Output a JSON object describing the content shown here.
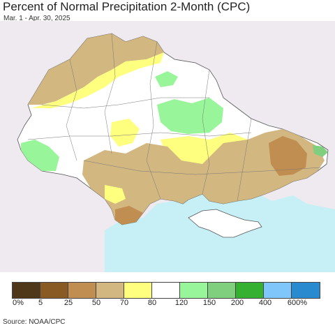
{
  "header": {
    "title": "Percent of Normal Precipitation 2-Month (CPC)",
    "date_range": "Mar. 1 - Apr. 30, 2025"
  },
  "legend": {
    "colors": [
      "#4e3819",
      "#8a5a24",
      "#c08e50",
      "#d2b781",
      "#ffff7f",
      "#ffffff",
      "#99f599",
      "#7fcf7f",
      "#36b030",
      "#7fc6fa",
      "#2a8ad0"
    ],
    "labels": [
      "0%",
      "5",
      "25",
      "50",
      "70",
      "80",
      "120",
      "150",
      "200",
      "400",
      "600%"
    ]
  },
  "footer": {
    "source": "Source: NOAA/CPC"
  },
  "map_colors": {
    "sea": "#c6f0f5",
    "outside": "#eeeaf0",
    "country_bg": "#ffffff"
  }
}
